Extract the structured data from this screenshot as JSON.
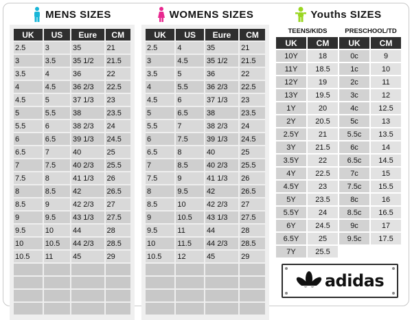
{
  "mens": {
    "title": "MENS  SIZES",
    "icon_color": "#18b6d8",
    "headers": [
      "UK",
      "US",
      "Eure",
      "CM"
    ],
    "rows": [
      [
        "2.5",
        "3",
        "35",
        "21"
      ],
      [
        "3",
        "3.5",
        "35 1/2",
        "21.5"
      ],
      [
        "3.5",
        "4",
        "36",
        "22"
      ],
      [
        "4",
        "4.5",
        "36 2/3",
        "22.5"
      ],
      [
        "4.5",
        "5",
        "37 1/3",
        "23"
      ],
      [
        "5",
        "5.5",
        "38",
        "23.5"
      ],
      [
        "5.5",
        "6",
        "38 2/3",
        "24"
      ],
      [
        "6",
        "6.5",
        "39 1/3",
        "24.5"
      ],
      [
        "6.5",
        "7",
        "40",
        "25"
      ],
      [
        "7",
        "7.5",
        "40 2/3",
        "25.5"
      ],
      [
        "7.5",
        "8",
        "41 1/3",
        "26"
      ],
      [
        "8",
        "8.5",
        "42",
        "26.5"
      ],
      [
        "8.5",
        "9",
        "42 2/3",
        "27"
      ],
      [
        "9",
        "9.5",
        "43 1/3",
        "27.5"
      ],
      [
        "9.5",
        "10",
        "44",
        "28"
      ],
      [
        "10",
        "10.5",
        "44 2/3",
        "28.5"
      ],
      [
        "10.5",
        "11",
        "45",
        "29"
      ]
    ]
  },
  "womens": {
    "title": "WOMENS  SIZES",
    "icon_color": "#e8288f",
    "headers": [
      "UK",
      "US",
      "Eure",
      "CM"
    ],
    "rows": [
      [
        "2.5",
        "4",
        "35",
        "21"
      ],
      [
        "3",
        "4.5",
        "35 1/2",
        "21.5"
      ],
      [
        "3.5",
        "5",
        "36",
        "22"
      ],
      [
        "4",
        "5.5",
        "36 2/3",
        "22.5"
      ],
      [
        "4.5",
        "6",
        "37  1/3",
        "23"
      ],
      [
        "5",
        "6.5",
        "38",
        "23.5"
      ],
      [
        "5.5",
        "7",
        "38 2/3",
        "24"
      ],
      [
        "6",
        "7.5",
        "39 1/3",
        "24.5"
      ],
      [
        "6.5",
        "8",
        "40",
        "25"
      ],
      [
        "7",
        "8.5",
        "40 2/3",
        "25.5"
      ],
      [
        "7.5",
        "9",
        "41 1/3",
        "26"
      ],
      [
        "8",
        "9.5",
        "42",
        "26.5"
      ],
      [
        "8.5",
        "10",
        "42 2/3",
        "27"
      ],
      [
        "9",
        "10.5",
        "43 1/3",
        "27.5"
      ],
      [
        "9.5",
        "11",
        "44",
        "28"
      ],
      [
        "10",
        "11.5",
        "44 2/3",
        "28.5"
      ],
      [
        "10.5",
        "12",
        "45",
        "29"
      ]
    ]
  },
  "youths": {
    "title": "Youths  SIZES",
    "icon_color": "#9ad621",
    "teens_label": "TEENS/KIDS",
    "preschool_label": "PRESCHOOL/TD",
    "headers": [
      "UK",
      "CM",
      "UK",
      "CM"
    ],
    "rows": [
      [
        "10Y",
        "18",
        "0c",
        "9"
      ],
      [
        "11Y",
        "18.5",
        "1c",
        "10"
      ],
      [
        "12Y",
        "19",
        "2c",
        "11"
      ],
      [
        "13Y",
        "19.5",
        "3c",
        "12"
      ],
      [
        "1Y",
        "20",
        "4c",
        "12.5"
      ],
      [
        "2Y",
        "20.5",
        "5c",
        "13"
      ],
      [
        "2.5Y",
        "21",
        "5.5c",
        "13.5"
      ],
      [
        "3Y",
        "21.5",
        "6c",
        "14"
      ],
      [
        "3.5Y",
        "22",
        "6.5c",
        "14.5"
      ],
      [
        "4Y",
        "22.5",
        "7c",
        "15"
      ],
      [
        "4.5Y",
        "23",
        "7.5c",
        "15.5"
      ],
      [
        "5Y",
        "23.5",
        "8c",
        "16"
      ],
      [
        "5.5Y",
        "24",
        "8.5c",
        "16.5"
      ],
      [
        "6Y",
        "24.5",
        "9c",
        "17"
      ],
      [
        "6.5Y",
        "25",
        "9.5c",
        "17.5"
      ],
      [
        "7Y",
        "25.5",
        "",
        ""
      ]
    ]
  },
  "logo": {
    "text": "adidas"
  }
}
